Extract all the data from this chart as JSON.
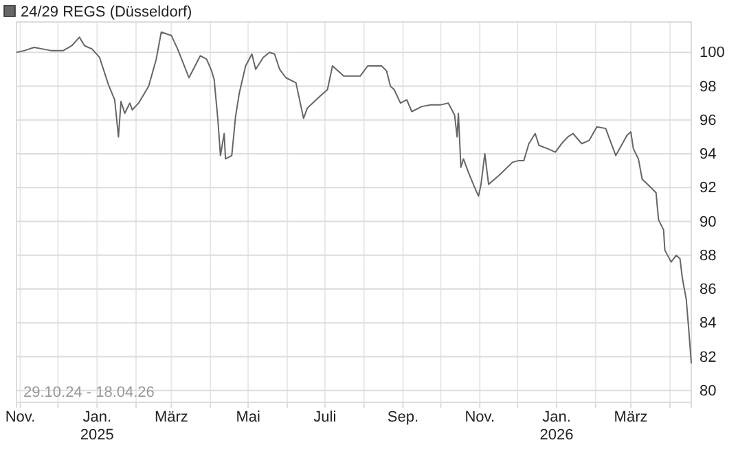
{
  "chart_data": {
    "type": "line",
    "legend": "top left",
    "grid": true,
    "marker": "none",
    "line_style": "solid",
    "annotations": [
      "29.10.24 - 18.04.26"
    ],
    "xlim": [
      "2024-10-29",
      "2026-04-18"
    ],
    "xticks": [
      {
        "value": "2024-11-01",
        "label": "Nov."
      },
      {
        "value": "2024-12-01",
        "label": null
      },
      {
        "value": "2025-01-01",
        "label": "Jan. 2025"
      },
      {
        "value": "2025-02-01",
        "label": null
      },
      {
        "value": "2025-03-01",
        "label": "März"
      },
      {
        "value": "2025-04-01",
        "label": null
      },
      {
        "value": "2025-05-01",
        "label": "Mai"
      },
      {
        "value": "2025-06-01",
        "label": null
      },
      {
        "value": "2025-07-01",
        "label": "Juli"
      },
      {
        "value": "2025-08-01",
        "label": null
      },
      {
        "value": "2025-09-01",
        "label": "Sep."
      },
      {
        "value": "2025-10-01",
        "label": null
      },
      {
        "value": "2025-11-01",
        "label": "Nov."
      },
      {
        "value": "2025-12-01",
        "label": null
      },
      {
        "value": "2026-01-01",
        "label": "Jan. 2026"
      },
      {
        "value": "2026-02-01",
        "label": null
      },
      {
        "value": "2026-03-01",
        "label": "März"
      },
      {
        "value": "2026-04-01",
        "label": null
      }
    ],
    "ylim": [
      79.3,
      101.8
    ],
    "yticks": [
      80,
      82,
      84,
      86,
      88,
      90,
      92,
      94,
      96,
      98,
      100
    ],
    "x": [
      "2024-10-29",
      "2024-11-04",
      "2024-11-12",
      "2024-11-26",
      "2024-12-05",
      "2024-12-12",
      "2024-12-18",
      "2024-12-22",
      "2024-12-28",
      "2025-01-03",
      "2025-01-10",
      "2025-01-15",
      "2025-01-18",
      "2025-01-20",
      "2025-01-23",
      "2025-01-27",
      "2025-01-29",
      "2025-02-03",
      "2025-02-11",
      "2025-02-17",
      "2025-02-21",
      "2025-03-01",
      "2025-03-06",
      "2025-03-15",
      "2025-03-24",
      "2025-03-29",
      "2025-04-02",
      "2025-04-04",
      "2025-04-07",
      "2025-04-09",
      "2025-04-12",
      "2025-04-13",
      "2025-04-18",
      "2025-04-21",
      "2025-04-24",
      "2025-04-29",
      "2025-05-04",
      "2025-05-07",
      "2025-05-13",
      "2025-05-18",
      "2025-05-22",
      "2025-05-26",
      "2025-05-31",
      "2025-06-08",
      "2025-06-14",
      "2025-06-17",
      "2025-06-27",
      "2025-07-03",
      "2025-07-07",
      "2025-07-16",
      "2025-07-29",
      "2025-08-04",
      "2025-08-15",
      "2025-08-19",
      "2025-08-22",
      "2025-08-25",
      "2025-08-30",
      "2025-09-04",
      "2025-09-08",
      "2025-09-16",
      "2025-09-23",
      "2025-10-01",
      "2025-10-07",
      "2025-10-12",
      "2025-10-14",
      "2025-10-15",
      "2025-10-17",
      "2025-10-19",
      "2025-10-23",
      "2025-10-28",
      "2025-10-31",
      "2025-11-02",
      "2025-11-05",
      "2025-11-08",
      "2025-11-16",
      "2025-11-27",
      "2025-12-02",
      "2025-12-06",
      "2025-12-10",
      "2025-12-15",
      "2025-12-18",
      "2025-12-25",
      "2025-12-31",
      "2026-01-05",
      "2026-01-10",
      "2026-01-14",
      "2026-01-21",
      "2026-01-27",
      "2026-02-02",
      "2026-02-09",
      "2026-02-13",
      "2026-02-17",
      "2026-02-20",
      "2026-02-26",
      "2026-03-01",
      "2026-03-03",
      "2026-03-07",
      "2026-03-10",
      "2026-03-17",
      "2026-03-21",
      "2026-03-23",
      "2026-03-27",
      "2026-03-28",
      "2026-04-02",
      "2026-04-06",
      "2026-04-09",
      "2026-04-11",
      "2026-04-14",
      "2026-04-16",
      "2026-04-18"
    ],
    "series": [
      {
        "name": "24/29 REGS (Düsseldorf)",
        "color": "#666666",
        "values": [
          100.0,
          100.1,
          100.3,
          100.1,
          100.1,
          100.4,
          100.9,
          100.4,
          100.2,
          99.7,
          98.1,
          97.2,
          95.0,
          97.1,
          96.4,
          97.0,
          96.6,
          97.0,
          98.0,
          99.6,
          101.2,
          101.0,
          100.2,
          98.5,
          99.8,
          99.6,
          98.9,
          98.4,
          96.0,
          93.9,
          95.2,
          93.7,
          93.9,
          96.2,
          97.6,
          99.2,
          99.9,
          99.0,
          99.7,
          100.0,
          99.9,
          99.0,
          98.5,
          98.2,
          96.1,
          96.7,
          97.4,
          97.8,
          99.2,
          98.6,
          98.6,
          99.2,
          99.2,
          98.9,
          98.0,
          97.8,
          97.0,
          97.2,
          96.5,
          96.8,
          96.9,
          96.9,
          97.0,
          96.3,
          95.0,
          96.4,
          93.2,
          93.7,
          92.9,
          92.0,
          91.5,
          92.2,
          94.0,
          92.2,
          92.7,
          93.5,
          93.6,
          93.6,
          94.6,
          95.2,
          94.5,
          94.3,
          94.1,
          94.6,
          95.0,
          95.2,
          94.6,
          94.8,
          95.6,
          95.5,
          94.7,
          93.9,
          94.3,
          95.1,
          95.3,
          94.3,
          93.7,
          92.5,
          92.0,
          91.7,
          90.1,
          89.5,
          88.3,
          87.6,
          88.0,
          87.8,
          86.6,
          85.4,
          83.6,
          81.6
        ]
      }
    ]
  }
}
